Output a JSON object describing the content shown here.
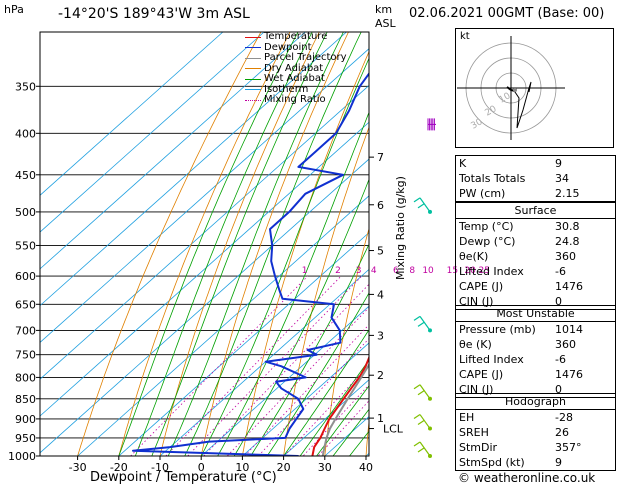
{
  "header": {
    "hpa_label": "hPa",
    "location": "-14°20'S 189°43'W 3m ASL",
    "km_label": "km",
    "asl_label": "ASL",
    "datetime": "02.06.2021 00GMT (Base: 00)"
  },
  "legend": [
    {
      "label": "Temperature",
      "color": "#e01010",
      "style": "solid"
    },
    {
      "label": "Dewpoint",
      "color": "#1030d0",
      "style": "solid"
    },
    {
      "label": "Parcel Trajectory",
      "color": "#909090",
      "style": "solid"
    },
    {
      "label": "Dry Adiabat",
      "color": "#e08000",
      "style": "solid"
    },
    {
      "label": "Wet Adiabat",
      "color": "#00a000",
      "style": "solid"
    },
    {
      "label": "Isotherm",
      "color": "#20a0e0",
      "style": "solid"
    },
    {
      "label": "Mixing Ratio",
      "color": "#c000a0",
      "style": "dotted"
    }
  ],
  "stats": {
    "k_label": "K",
    "k": "9",
    "tt_label": "Totals Totals",
    "tt": "34",
    "pw_label": "PW (cm)",
    "pw": "2.15"
  },
  "surface": {
    "title": "Surface",
    "temp_label": "Temp (°C)",
    "temp": "30.8",
    "dewp_label": "Dewp (°C)",
    "dewp": "24.8",
    "theta_label": "θe(K)",
    "theta": "360",
    "li_label": "Lifted Index",
    "li": "-6",
    "cape_label": "CAPE (J)",
    "cape": "1476",
    "cin_label": "CIN (J)",
    "cin": "0"
  },
  "most_unstable": {
    "title": "Most Unstable",
    "pres_label": "Pressure (mb)",
    "pres": "1014",
    "theta_label": "θe (K)",
    "theta": "360",
    "li_label": "Lifted Index",
    "li": "-6",
    "cape_label": "CAPE (J)",
    "cape": "1476",
    "cin_label": "CIN (J)",
    "cin": "0"
  },
  "hodograph_stats": {
    "title": "Hodograph",
    "eh_label": "EH",
    "eh": "-28",
    "sreh_label": "SREH",
    "sreh": "26",
    "stmdir_label": "StmDir",
    "stmdir": "357°",
    "stmspd_label": "StmSpd (kt)",
    "stmspd": "9"
  },
  "hodograph": {
    "unit_label": "kt",
    "ring_labels": [
      "10",
      "20",
      "30"
    ]
  },
  "footer": {
    "credit": "© weatheronline.co.uk"
  },
  "chart_data": {
    "type": "line",
    "xlabel": "Dewpoint / Temperature (°C)",
    "ylabel_right": "Mixing Ratio (g/kg)",
    "x_ticks": [
      -30,
      -20,
      -10,
      0,
      10,
      20,
      30,
      40
    ],
    "pressure_levels": [
      300,
      350,
      400,
      450,
      500,
      550,
      600,
      650,
      700,
      750,
      800,
      850,
      900,
      950,
      1000
    ],
    "pressure_tick_labels": [
      "350",
      "400",
      "450",
      "500",
      "550",
      "600",
      "650",
      "700",
      "750",
      "800",
      "850",
      "900",
      "950",
      "1000"
    ],
    "km_ticks": [
      {
        "km": "1",
        "p": 898
      },
      {
        "km": "2",
        "p": 795
      },
      {
        "km": "3",
        "p": 710
      },
      {
        "km": "4",
        "p": 632
      },
      {
        "km": "5",
        "p": 558
      },
      {
        "km": "6",
        "p": 490
      },
      {
        "km": "7",
        "p": 428
      }
    ],
    "lcl_label": "LCL",
    "lcl_p": 925,
    "mixing_ratio_labels": [
      "1",
      "2",
      "3",
      "4",
      "6",
      "8",
      "10",
      "15",
      "20",
      "25"
    ],
    "mixing_ratio_values": [
      1,
      2,
      3,
      4,
      6,
      8,
      10,
      15,
      20,
      25
    ],
    "series": [
      {
        "name": "Temperature",
        "color": "#e01010",
        "points": [
          [
            1014,
            30.8
          ],
          [
            1000,
            27
          ],
          [
            975,
            25
          ],
          [
            950,
            24
          ],
          [
            925,
            22.5
          ],
          [
            900,
            21
          ],
          [
            875,
            20
          ],
          [
            850,
            19
          ],
          [
            825,
            18
          ],
          [
            800,
            17
          ],
          [
            775,
            15.5
          ],
          [
            750,
            13.5
          ],
          [
            725,
            11.8
          ],
          [
            700,
            10
          ],
          [
            675,
            8.5
          ],
          [
            650,
            6.8
          ],
          [
            625,
            5.2
          ],
          [
            600,
            3.5
          ],
          [
            575,
            1.5
          ],
          [
            550,
            -0.5
          ],
          [
            525,
            -3
          ],
          [
            500,
            -5.5
          ],
          [
            475,
            -8.5
          ],
          [
            450,
            -12
          ],
          [
            425,
            -15.5
          ],
          [
            400,
            -20
          ],
          [
            375,
            -24.5
          ],
          [
            350,
            -29
          ]
        ]
      },
      {
        "name": "Dewpoint",
        "color": "#1030d0",
        "points": [
          [
            1014,
            24.8
          ],
          [
            1000,
            23.5
          ],
          [
            985,
            -18
          ],
          [
            975,
            -10
          ],
          [
            960,
            -2
          ],
          [
            950,
            15.5
          ],
          [
            925,
            14
          ],
          [
            900,
            13
          ],
          [
            875,
            12
          ],
          [
            850,
            8
          ],
          [
            825,
            1
          ],
          [
            810,
            -2
          ],
          [
            800,
            4
          ],
          [
            775,
            -5
          ],
          [
            765,
            -10
          ],
          [
            750,
            0.5
          ],
          [
            740,
            -3
          ],
          [
            725,
            3
          ],
          [
            700,
            -0.5
          ],
          [
            675,
            -6
          ],
          [
            650,
            -9
          ],
          [
            640,
            -23
          ],
          [
            625,
            -26
          ],
          [
            600,
            -31
          ],
          [
            575,
            -36
          ],
          [
            550,
            -40
          ],
          [
            525,
            -45
          ],
          [
            500,
            -45
          ],
          [
            475,
            -46
          ],
          [
            450,
            -42
          ],
          [
            440,
            -55
          ],
          [
            425,
            -55
          ],
          [
            400,
            -55
          ],
          [
            375,
            -58
          ],
          [
            350,
            -62
          ],
          [
            320,
            -65
          ],
          [
            300,
            -68
          ]
        ]
      },
      {
        "name": "Parcel Trajectory",
        "color": "#909090",
        "points": [
          [
            1014,
            30.8
          ],
          [
            1000,
            29.5
          ],
          [
            975,
            27.5
          ],
          [
            950,
            25.5
          ],
          [
            925,
            23.8
          ],
          [
            900,
            22.5
          ],
          [
            850,
            20
          ],
          [
            800,
            17.5
          ],
          [
            750,
            14.7
          ],
          [
            700,
            11.6
          ],
          [
            650,
            8.2
          ],
          [
            600,
            4.4
          ],
          [
            550,
            0.1
          ],
          [
            500,
            -4.9
          ],
          [
            450,
            -10.7
          ],
          [
            400,
            -17.6
          ],
          [
            350,
            -25.9
          ]
        ]
      }
    ],
    "wind_barbs": [
      {
        "p": 390,
        "type": "pennant"
      },
      {
        "p": 500,
        "type": "barb"
      },
      {
        "p": 700,
        "type": "barb"
      },
      {
        "p": 850,
        "type": "barb"
      },
      {
        "p": 925,
        "type": "barb"
      },
      {
        "p": 1000,
        "type": "barb"
      }
    ]
  }
}
